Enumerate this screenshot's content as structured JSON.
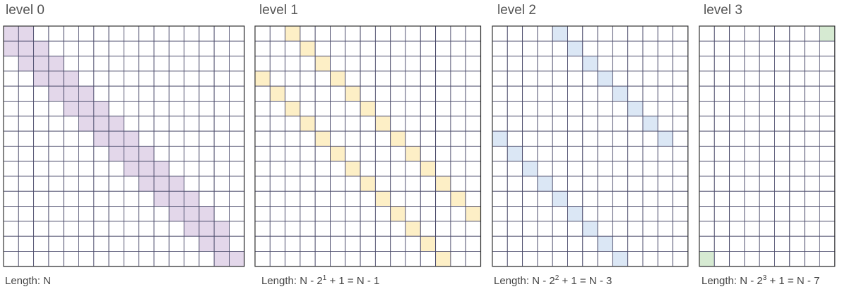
{
  "panels": [
    {
      "title": "level 0",
      "caption": {
        "pre": "Length: N",
        "sup": "",
        "post": ""
      },
      "fill": "#e3d7ea",
      "highlights": [
        [
          0,
          0
        ],
        [
          0,
          1
        ],
        [
          1,
          0
        ],
        [
          1,
          1
        ],
        [
          1,
          2
        ],
        [
          2,
          1
        ],
        [
          2,
          2
        ],
        [
          2,
          3
        ],
        [
          3,
          2
        ],
        [
          3,
          3
        ],
        [
          3,
          4
        ],
        [
          4,
          3
        ],
        [
          4,
          4
        ],
        [
          4,
          5
        ],
        [
          5,
          4
        ],
        [
          5,
          5
        ],
        [
          5,
          6
        ],
        [
          6,
          5
        ],
        [
          6,
          6
        ],
        [
          6,
          7
        ],
        [
          7,
          6
        ],
        [
          7,
          7
        ],
        [
          7,
          8
        ],
        [
          8,
          7
        ],
        [
          8,
          8
        ],
        [
          8,
          9
        ],
        [
          9,
          8
        ],
        [
          9,
          9
        ],
        [
          9,
          10
        ],
        [
          10,
          9
        ],
        [
          10,
          10
        ],
        [
          10,
          11
        ],
        [
          11,
          10
        ],
        [
          11,
          11
        ],
        [
          11,
          12
        ],
        [
          12,
          11
        ],
        [
          12,
          12
        ],
        [
          12,
          13
        ],
        [
          13,
          12
        ],
        [
          13,
          13
        ],
        [
          13,
          14
        ],
        [
          14,
          13
        ],
        [
          14,
          14
        ],
        [
          15,
          14
        ],
        [
          15,
          15
        ],
        [
          16,
          15
        ]
      ]
    },
    {
      "title": "level 1",
      "caption": {
        "pre": "Length: N - 2",
        "sup": "1",
        "post": " + 1 = N - 1"
      },
      "fill": "#fdefc6",
      "highlights": [
        [
          0,
          2
        ],
        [
          1,
          3
        ],
        [
          2,
          4
        ],
        [
          3,
          0
        ],
        [
          3,
          5
        ],
        [
          4,
          1
        ],
        [
          4,
          6
        ],
        [
          5,
          2
        ],
        [
          5,
          7
        ],
        [
          6,
          3
        ],
        [
          6,
          8
        ],
        [
          7,
          4
        ],
        [
          7,
          9
        ],
        [
          8,
          5
        ],
        [
          8,
          10
        ],
        [
          9,
          6
        ],
        [
          9,
          11
        ],
        [
          10,
          7
        ],
        [
          10,
          12
        ],
        [
          11,
          8
        ],
        [
          11,
          13
        ],
        [
          12,
          9
        ],
        [
          12,
          14
        ],
        [
          13,
          10
        ],
        [
          14,
          11
        ],
        [
          15,
          12
        ]
      ]
    },
    {
      "title": "level 2",
      "caption": {
        "pre": "Length: N - 2",
        "sup": "2",
        "post": " + 1 = N - 3"
      },
      "fill": "#dbe7f5",
      "highlights": [
        [
          0,
          4
        ],
        [
          1,
          5
        ],
        [
          2,
          6
        ],
        [
          3,
          7
        ],
        [
          4,
          8
        ],
        [
          5,
          9
        ],
        [
          6,
          10
        ],
        [
          7,
          0
        ],
        [
          7,
          11
        ],
        [
          8,
          1
        ],
        [
          9,
          2
        ],
        [
          10,
          3
        ],
        [
          11,
          4
        ],
        [
          12,
          5
        ],
        [
          13,
          6
        ],
        [
          14,
          7
        ],
        [
          15,
          8
        ]
      ]
    },
    {
      "title": "level 3",
      "caption": {
        "pre": "Length: N - 2",
        "sup": "3",
        "post": " + 1 = N - 7"
      },
      "fill": "#d6ead2",
      "highlights": [
        [
          0,
          8
        ],
        [
          15,
          0
        ]
      ]
    }
  ]
}
